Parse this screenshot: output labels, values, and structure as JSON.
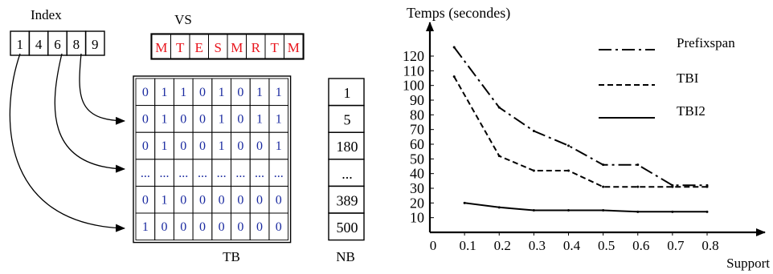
{
  "diagram": {
    "index_label": "Index",
    "index_values": [
      "1",
      "4",
      "6",
      "8",
      "9"
    ],
    "vs_label": "VS",
    "vs_letters": [
      "M",
      "T",
      "E",
      "S",
      "M",
      "R",
      "T",
      "M"
    ],
    "tb_rows": [
      [
        "0",
        "1",
        "1",
        "0",
        "1",
        "0",
        "1",
        "1"
      ],
      [
        "0",
        "1",
        "0",
        "0",
        "1",
        "0",
        "1",
        "1"
      ],
      [
        "0",
        "1",
        "0",
        "0",
        "1",
        "0",
        "0",
        "1"
      ],
      [
        "...",
        "...",
        "...",
        "...",
        "...",
        "...",
        "...",
        "..."
      ],
      [
        "0",
        "1",
        "0",
        "0",
        "0",
        "0",
        "0",
        "0"
      ],
      [
        "1",
        "0",
        "0",
        "0",
        "0",
        "0",
        "0",
        "0"
      ]
    ],
    "nb_values": [
      "1",
      "5",
      "180",
      "...",
      "389",
      "500"
    ],
    "tb_label": "TB",
    "nb_label": "NB",
    "colors": {
      "letters": "#e8141c",
      "bits": "#1a2aa0",
      "ink": "#000000"
    }
  },
  "chart_data": {
    "type": "line",
    "ylabel": "Temps (secondes)",
    "xlabel": "Support",
    "x_ticks": [
      "0",
      "0.1",
      "0.2",
      "0.3",
      "0.4",
      "0.5",
      "0.6",
      "0.7",
      "0.8"
    ],
    "y_ticks": [
      "10",
      "20",
      "30",
      "40",
      "50",
      "60",
      "70",
      "80",
      "90",
      "100",
      "110",
      "120"
    ],
    "xlim": [
      0,
      0.8
    ],
    "ylim": [
      0,
      125
    ],
    "grid": false,
    "legend_position": "top-right",
    "series": [
      {
        "name": "Prefixspan",
        "style": "dashdot",
        "x": [
          0.07,
          0.2,
          0.3,
          0.4,
          0.5,
          0.6,
          0.7,
          0.8
        ],
        "y": [
          126,
          85,
          69,
          59,
          46,
          46,
          32,
          32
        ]
      },
      {
        "name": "TBI",
        "style": "dashed",
        "x": [
          0.07,
          0.2,
          0.3,
          0.4,
          0.5,
          0.6,
          0.7,
          0.8
        ],
        "y": [
          106,
          52,
          42,
          42,
          31,
          31,
          31,
          31
        ]
      },
      {
        "name": "TBI2",
        "style": "solid",
        "x": [
          0.1,
          0.2,
          0.3,
          0.4,
          0.5,
          0.6,
          0.7,
          0.8
        ],
        "y": [
          20,
          17,
          15,
          15,
          15,
          14,
          14,
          14
        ]
      }
    ]
  }
}
